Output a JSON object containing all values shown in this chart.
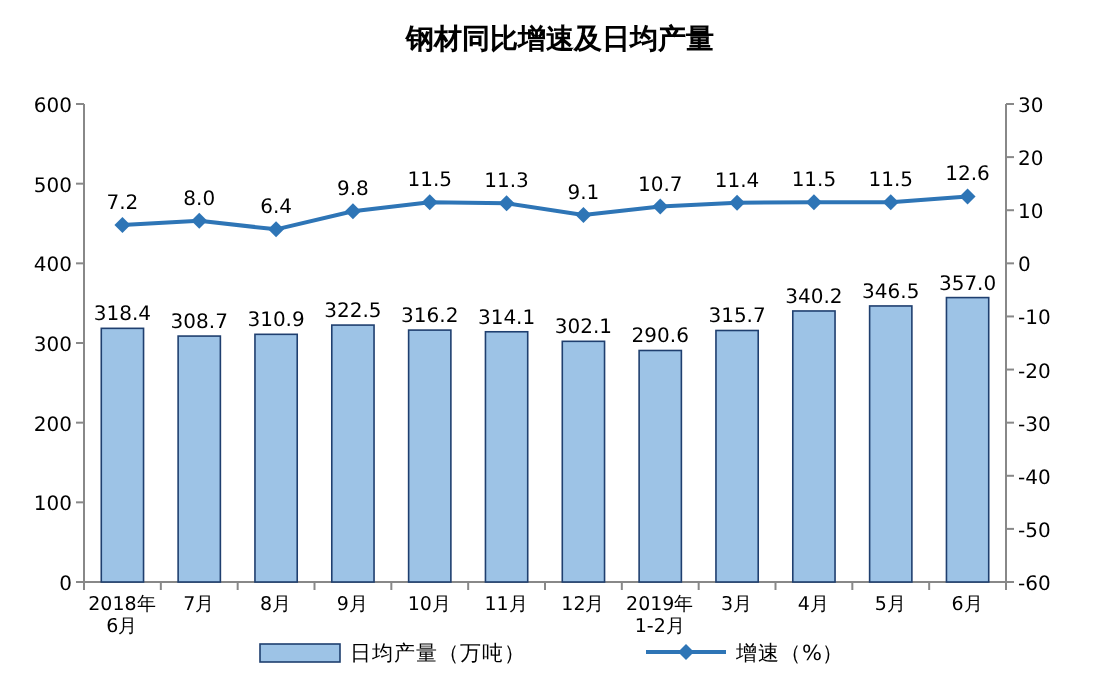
{
  "chart_data": {
    "type": "bar",
    "title": "钢材同比增速及日均产量",
    "categories": [
      "2018年\n6月",
      "7月",
      "8月",
      "9月",
      "10月",
      "11月",
      "12月",
      "2019年\n1-2月",
      "3月",
      "4月",
      "5月",
      "6月"
    ],
    "series": [
      {
        "name": "日均产量（万吨）",
        "color": "#9dc3e6",
        "values": [
          318.4,
          308.7,
          310.9,
          322.5,
          316.2,
          314.1,
          302.1,
          290.6,
          315.7,
          340.2,
          346.5,
          357.0
        ],
        "value_labels": [
          "318.4",
          "308.7",
          "310.9",
          "322.5",
          "316.2",
          "314.1",
          "302.1",
          "290.6",
          "315.7",
          "340.2",
          "346.5",
          "357.0"
        ]
      },
      {
        "name": "增速（%）",
        "type": "line",
        "axis": "y2",
        "color": "#2e75b6",
        "marker": "diamond",
        "values": [
          7.2,
          8.0,
          6.4,
          9.8,
          11.5,
          11.3,
          9.1,
          10.7,
          11.4,
          11.5,
          11.5,
          12.6
        ],
        "value_labels": [
          "7.2",
          "8.0",
          "6.4",
          "9.8",
          "11.5",
          "11.3",
          "9.1",
          "10.7",
          "11.4",
          "11.5",
          "11.5",
          "12.6"
        ]
      }
    ],
    "ylim": [
      0,
      600
    ],
    "yticks": [
      0,
      100,
      200,
      300,
      400,
      500,
      600
    ],
    "y2lim": [
      -60,
      30
    ],
    "y2ticks": [
      -60,
      -50,
      -40,
      -30,
      -20,
      -10,
      0,
      10,
      20,
      30
    ],
    "legend": "bottom",
    "grid": false
  }
}
